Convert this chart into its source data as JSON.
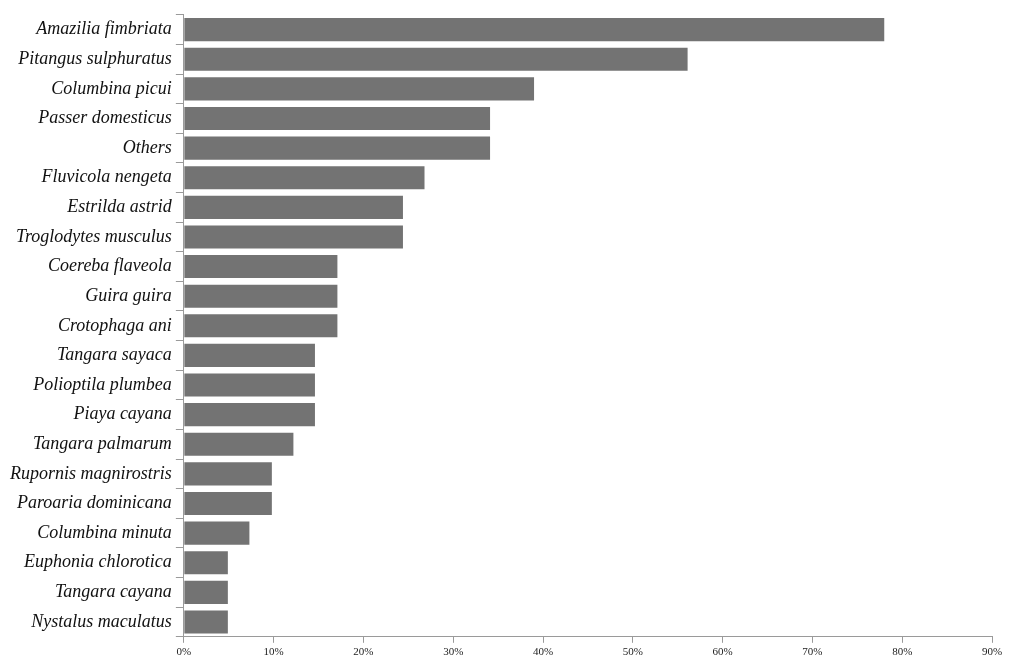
{
  "chart_data": {
    "type": "bar",
    "orientation": "horizontal",
    "categories": [
      "Amazilia fimbriata",
      "Pitangus sulphuratus",
      "Columbina picui",
      "Passer domesticus",
      "Others",
      "Fluvicola nengeta",
      "Estrilda astrid",
      "Troglodytes musculus",
      "Coereba flaveola",
      "Guira guira",
      "Crotophaga ani",
      "Tangara sayaca",
      "Polioptila plumbea",
      "Piaya cayana",
      "Tangara palmarum",
      "Rupornis magnirostris",
      "Paroaria dominicana",
      "Columbina minuta",
      "Euphonia chlorotica",
      "Tangara cayana",
      "Nystalus maculatus"
    ],
    "values": [
      78.0,
      56.1,
      39.0,
      34.1,
      34.1,
      26.8,
      24.4,
      24.4,
      17.1,
      17.1,
      17.1,
      14.6,
      14.6,
      14.6,
      12.2,
      9.8,
      9.8,
      7.3,
      4.9,
      4.9,
      4.9
    ],
    "color": "#737373",
    "xlim": [
      0,
      90
    ],
    "xticks": [
      {
        "value": 0,
        "label": "0%"
      },
      {
        "value": 10,
        "label": "10%"
      },
      {
        "value": 20,
        "label": "20%"
      },
      {
        "value": 30,
        "label": "30%"
      },
      {
        "value": 40,
        "label": "40%"
      },
      {
        "value": 50,
        "label": "50%"
      },
      {
        "value": 60,
        "label": "60%"
      },
      {
        "value": 70,
        "label": "70%"
      },
      {
        "value": 80,
        "label": "80%"
      },
      {
        "value": 90,
        "label": "90%"
      }
    ],
    "grid": false,
    "legend": false
  }
}
